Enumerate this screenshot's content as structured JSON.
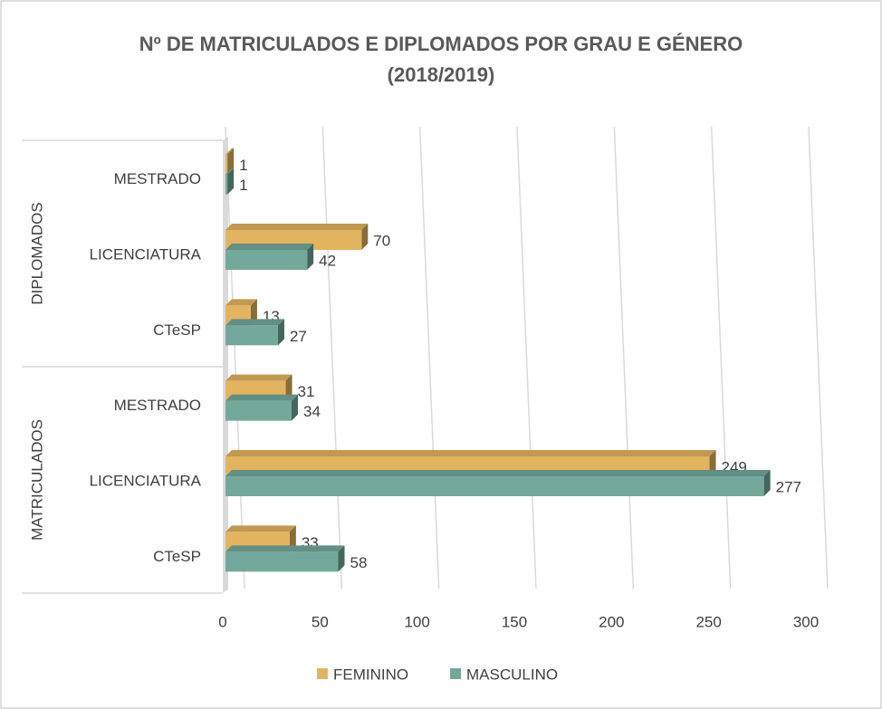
{
  "chart_data": {
    "type": "bar",
    "orientation": "horizontal",
    "title": [
      "Nº DE MATRICULADOS E DIPLOMADOS  POR GRAU E GÉNERO",
      "(2018/2019)"
    ],
    "groups": [
      {
        "name": "MATRICULADOS",
        "categories": [
          "CTeSP",
          "LICENCIATURA",
          "MESTRADO"
        ]
      },
      {
        "name": "DIPLOMADOS",
        "categories": [
          "CTeSP",
          "LICENCIATURA",
          "MESTRADO"
        ]
      }
    ],
    "series": [
      {
        "name": "FEMININO",
        "color": "#e3b45f",
        "values": [
          33,
          249,
          31,
          13,
          70,
          1
        ]
      },
      {
        "name": "MASCULINO",
        "color": "#74a89b",
        "values": [
          58,
          277,
          34,
          27,
          42,
          1
        ]
      }
    ],
    "xlim": [
      0,
      300
    ],
    "xticks": [
      0,
      50,
      100,
      150,
      200,
      250,
      300
    ],
    "grid": true,
    "legend": "bottom"
  }
}
